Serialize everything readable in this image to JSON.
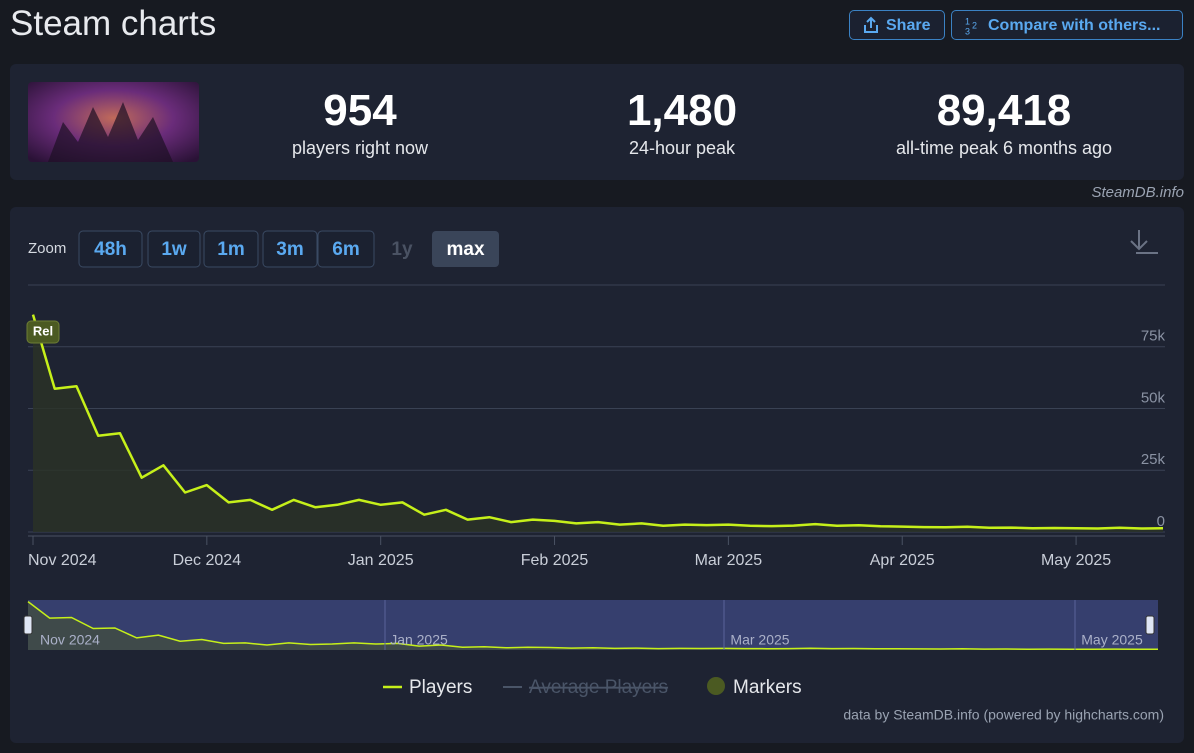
{
  "header": {
    "title": "Steam charts",
    "share": "Share",
    "compare": "Compare with others..."
  },
  "stats": [
    {
      "value": "954",
      "label": "players right now"
    },
    {
      "value": "1,480",
      "label": "24-hour peak"
    },
    {
      "value": "89,418",
      "label": "all-time peak 6 months ago"
    }
  ],
  "source": "SteamDB.info",
  "zoom": {
    "label": "Zoom",
    "buttons": [
      "48h",
      "1w",
      "1m",
      "3m",
      "6m",
      "1y",
      "max"
    ]
  },
  "chart_data": {
    "type": "line",
    "categories": [
      "Nov 2024",
      null,
      null,
      null,
      null,
      null,
      null,
      null,
      "Dec 2024",
      null,
      null,
      null,
      null,
      null,
      null,
      null,
      "Jan 2025",
      null,
      null,
      null,
      null,
      null,
      null,
      null,
      "Feb 2025",
      null,
      null,
      null,
      null,
      null,
      null,
      null,
      "Mar 2025",
      null,
      null,
      null,
      null,
      null,
      null,
      null,
      "Apr 2025",
      null,
      null,
      null,
      null,
      null,
      null,
      null,
      "May 2025",
      null,
      null,
      null,
      null
    ],
    "series": [
      {
        "name": "Players",
        "color": "#c6f01a",
        "values": [
          88000,
          58000,
          59000,
          39000,
          40000,
          22000,
          27000,
          16000,
          19000,
          12000,
          13000,
          9000,
          13000,
          10000,
          11000,
          13000,
          11000,
          12000,
          7000,
          9000,
          5000,
          6000,
          4000,
          5000,
          4500,
          3500,
          4000,
          3000,
          3500,
          2500,
          3000,
          2800,
          3000,
          2500,
          2400,
          2600,
          3200,
          2500,
          2700,
          2300,
          2200,
          2000,
          1900,
          2100,
          1700,
          1800,
          1500,
          1600,
          1500,
          1400,
          1700,
          1400,
          1500
        ]
      }
    ],
    "hidden_series": [
      {
        "name": "Average Players",
        "color": "#4a5568"
      }
    ],
    "markers": {
      "name": "Markers",
      "color": "#4b5a22",
      "items": [
        {
          "label": "Rel"
        }
      ]
    },
    "ylim": [
      0,
      100000
    ],
    "yticks": [
      0,
      {
        "value": 25000,
        "label": "25k"
      },
      {
        "value": 50000,
        "label": "50k"
      },
      {
        "value": 75000,
        "label": "75k"
      }
    ],
    "grid": true,
    "navigator_labels": [
      "Nov 2024",
      "Jan 2025",
      "Mar 2025",
      "May 2025"
    ],
    "credits": "data by SteamDB.info (powered by highcharts.com)"
  }
}
